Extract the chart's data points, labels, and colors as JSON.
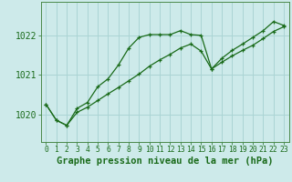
{
  "title": "Graphe pression niveau de la mer (hPa)",
  "background_color": "#cdeaea",
  "grid_color": "#aad4d4",
  "line_color": "#1a6b1a",
  "tick_color": "#1a6b1a",
  "spine_color": "#4a8a4a",
  "x_ticks": [
    0,
    1,
    2,
    3,
    4,
    5,
    6,
    7,
    8,
    9,
    10,
    11,
    12,
    13,
    14,
    15,
    16,
    17,
    18,
    19,
    20,
    21,
    22,
    23
  ],
  "ylim": [
    1019.3,
    1022.85
  ],
  "yticks": [
    1020,
    1021,
    1022
  ],
  "series1": [
    1020.25,
    1019.85,
    1019.72,
    1020.15,
    1020.3,
    1020.7,
    1020.9,
    1021.25,
    1021.68,
    1021.95,
    1022.02,
    1022.02,
    1022.02,
    1022.12,
    1022.02,
    1022.0,
    1021.15,
    1021.42,
    1021.62,
    1021.78,
    1021.95,
    1022.12,
    1022.35,
    1022.25
  ],
  "series2": [
    1020.25,
    1019.85,
    1019.72,
    1020.05,
    1020.18,
    1020.35,
    1020.52,
    1020.68,
    1020.85,
    1021.02,
    1021.22,
    1021.38,
    1021.52,
    1021.68,
    1021.78,
    1021.6,
    1021.15,
    1021.32,
    1021.48,
    1021.62,
    1021.75,
    1021.92,
    1022.1,
    1022.22
  ],
  "title_fontsize": 7.5,
  "tick_fontsize": 5.8,
  "ytick_fontsize": 7
}
